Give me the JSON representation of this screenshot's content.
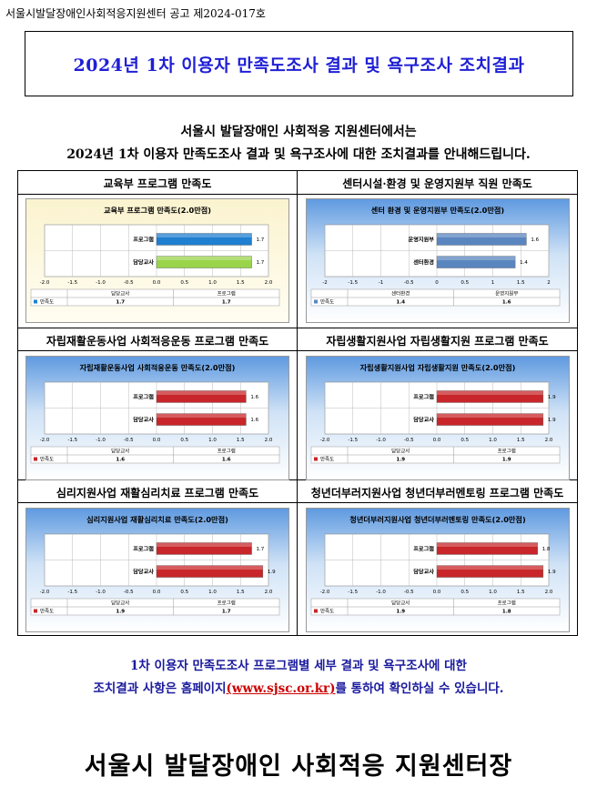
{
  "header": {
    "notice_number": "서울시발달장애인사회적응지원센터 공고 제2024-017호",
    "title": "2024년 1차 이용자 만족도조사 결과 및 욕구조사 조치결과"
  },
  "intro": {
    "line1": "서울시 발달장애인 사회적응 지원센터에서는",
    "line2": "2024년 1차 이용자 만족도조사 결과 및 욕구조사에 대한 조치결과를 안내해드립니다."
  },
  "colors": {
    "blue_bar": "#1f7fd0",
    "green_bar": "#99d44a",
    "steel_bar": "#5a86c0",
    "red_bar": "#c8262a",
    "title_blue": "#1f1fd6"
  },
  "sections": [
    {
      "heading": "교육부 프로그램 만족도",
      "chart_data": {
        "type": "bar",
        "title": "교육부 프로그램 만족도(2.0만점)",
        "categories": [
          "담당교사",
          "프로그램"
        ],
        "values": [
          1.7,
          1.7
        ],
        "bar_labels": [
          "프로그램",
          "담당교사"
        ],
        "bar_values": [
          1.7,
          1.7
        ],
        "bar_colors": [
          "#1f7fd0",
          "#99d44a"
        ],
        "x_ticks": [
          "-2.0",
          "-1.5",
          "-1.0",
          "-0.5",
          "0.0",
          "0.5",
          "1.0",
          "1.5",
          "2.0"
        ],
        "xlim": [
          -2,
          2
        ],
        "legend": "만족도",
        "legend_color": "#1f7fd0",
        "theme": "cream"
      }
    },
    {
      "heading": "센터시설·환경 및 운영지원부 직원 만족도",
      "chart_data": {
        "type": "bar",
        "title": "센터 환경 및 운영지원부 만족도(2.0만점)",
        "categories": [
          "센터환경",
          "운영지원부"
        ],
        "values": [
          1.4,
          1.6
        ],
        "bar_labels": [
          "운영지원부",
          "센터환경"
        ],
        "bar_values": [
          1.6,
          1.4
        ],
        "bar_colors": [
          "#5a86c0",
          "#5a86c0"
        ],
        "x_ticks": [
          "-2",
          "-1.5",
          "-1",
          "-0.5",
          "0",
          "0.5",
          "1",
          "1.5",
          "2"
        ],
        "xlim": [
          -2,
          2
        ],
        "legend": "만족도",
        "legend_color": "#5a86c0",
        "theme": "blue"
      }
    },
    {
      "heading": "자립재활운동사업 사회적응운동 프로그램 만족도",
      "chart_data": {
        "type": "bar",
        "title": "자립재활운동사업 사회적응운동 만족도(2.0만점)",
        "categories": [
          "담당교사",
          "프로그램"
        ],
        "values": [
          1.6,
          1.6
        ],
        "bar_labels": [
          "프로그램",
          "담당교사"
        ],
        "bar_values": [
          1.6,
          1.6
        ],
        "bar_colors": [
          "#c8262a",
          "#c8262a"
        ],
        "x_ticks": [
          "-2.0",
          "-1.5",
          "-1.0",
          "-0.5",
          "0.0",
          "0.5",
          "1.0",
          "1.5",
          "2.0"
        ],
        "xlim": [
          -2,
          2
        ],
        "legend": "만족도",
        "legend_color": "#c8262a",
        "theme": "blue"
      }
    },
    {
      "heading": "자립생활지원사업 자립생활지원 프로그램 만족도",
      "chart_data": {
        "type": "bar",
        "title": "자립생활지원사업 자립생활지원 만족도(2.0만점)",
        "categories": [
          "담당교사",
          "프로그램"
        ],
        "values": [
          1.9,
          1.9
        ],
        "bar_labels": [
          "프로그램",
          "담당교사"
        ],
        "bar_values": [
          1.9,
          1.9
        ],
        "bar_colors": [
          "#c8262a",
          "#c8262a"
        ],
        "x_ticks": [
          "-2.0",
          "-1.5",
          "-1.0",
          "-0.5",
          "0.0",
          "0.5",
          "1.0",
          "1.5",
          "2.0"
        ],
        "xlim": [
          -2,
          2
        ],
        "legend": "만족도",
        "legend_color": "#c8262a",
        "theme": "blue"
      }
    },
    {
      "heading": "심리지원사업 재활심리치료 프로그램 만족도",
      "chart_data": {
        "type": "bar",
        "title": "심리지원사업 재활심리치료 만족도(2.0만점)",
        "categories": [
          "담당교사",
          "프로그램"
        ],
        "values": [
          1.9,
          1.7
        ],
        "bar_labels": [
          "프로그램",
          "담당교사"
        ],
        "bar_values": [
          1.7,
          1.9
        ],
        "bar_colors": [
          "#c8262a",
          "#c8262a"
        ],
        "x_ticks": [
          "-2.0",
          "-1.5",
          "-1.0",
          "-0.5",
          "0.0",
          "0.5",
          "1.0",
          "1.5",
          "2.0"
        ],
        "xlim": [
          -2,
          2
        ],
        "legend": "만족도",
        "legend_color": "#c8262a",
        "theme": "blue"
      }
    },
    {
      "heading": "청년더부러지원사업 청년더부러멘토링 프로그램 만족도",
      "chart_data": {
        "type": "bar",
        "title": "청년더부러지원사업 청년더부러멘토링 만족도(2.0만점)",
        "categories": [
          "담당교사",
          "프로그램"
        ],
        "values": [
          1.9,
          1.8
        ],
        "bar_labels": [
          "프로그램",
          "담당교사"
        ],
        "bar_values": [
          1.8,
          1.9
        ],
        "bar_colors": [
          "#c8262a",
          "#c8262a"
        ],
        "x_ticks": [
          "-2.0",
          "-1.5",
          "-1.0",
          "-0.5",
          "0.0",
          "0.5",
          "1.0",
          "1.5",
          "2.0"
        ],
        "xlim": [
          -2,
          2
        ],
        "legend": "만족도",
        "legend_color": "#c8262a",
        "theme": "blue"
      }
    }
  ],
  "footer": {
    "line1": "1차 이용자 만족도조사 프로그램별 세부 결과 및 욕구조사에 대한",
    "line2_before": "조치결과 사항은 홈페이지",
    "link_text": "(www.sjsc.or.kr)",
    "line2_after": "를 통하여 확인하실 수 있습니다.",
    "signature": "서울시 발달장애인 사회적응 지원센터장"
  }
}
